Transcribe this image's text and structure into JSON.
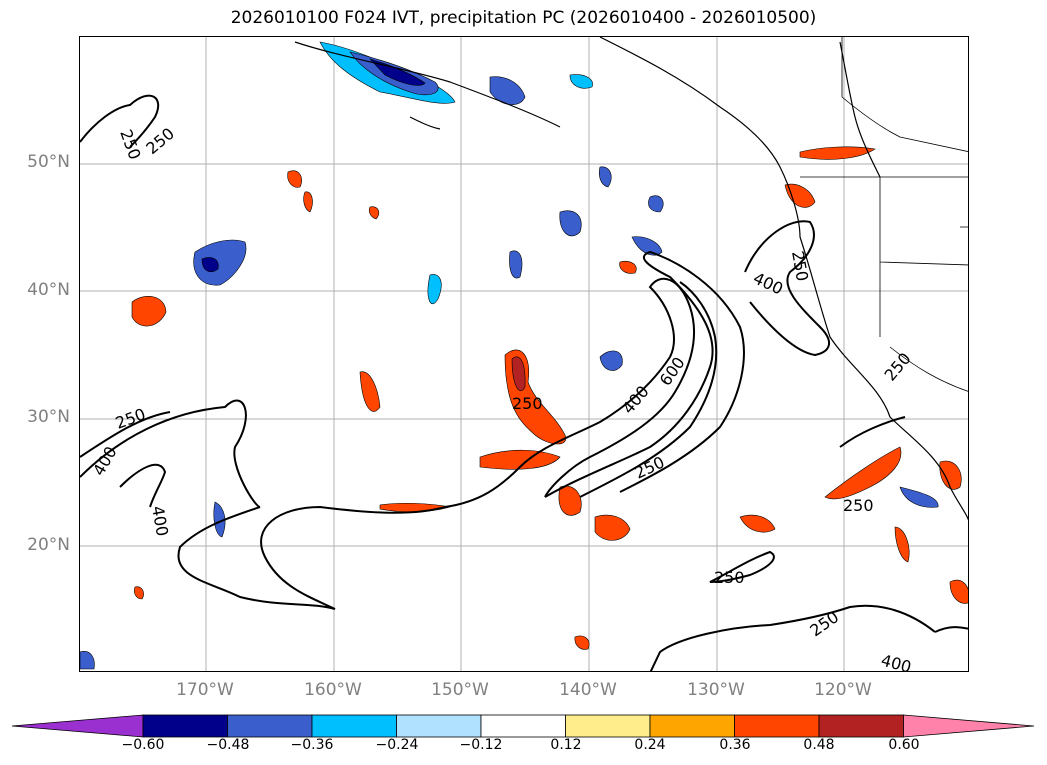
{
  "title": "2026010100 F024 IVT, precipitation PC (2026010400 - 2026010500)",
  "latitude_labels": [
    "50°N",
    "40°N",
    "30°N",
    "20°N"
  ],
  "longitude_labels": [
    "170°W",
    "160°W",
    "150°W",
    "140°W",
    "130°W",
    "120°W"
  ],
  "contour_labels": [
    "250",
    "250",
    "250",
    "400",
    "400",
    "250",
    "400",
    "600",
    "250",
    "400",
    "250",
    "250",
    "250",
    "250",
    "400",
    "250"
  ],
  "colorbar": {
    "ticks": [
      "−0.60",
      "−0.48",
      "−0.36",
      "−0.24",
      "−0.12",
      "0.12",
      "0.24",
      "0.36",
      "0.48",
      "0.60"
    ],
    "colors": [
      "#9b30d0",
      "#00008b",
      "#3a5fcd",
      "#00bfff",
      "#b0e2ff",
      "#ffffff",
      "#ffec8b",
      "#ffa500",
      "#ff4500",
      "#b22222",
      "#ff82ab"
    ]
  }
}
